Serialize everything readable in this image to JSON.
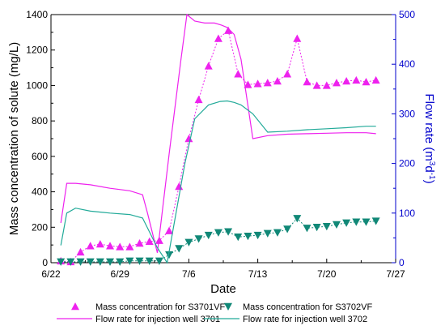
{
  "chart_data": {
    "type": "line",
    "xlabel": "Date",
    "ylabel_left": "Mass concentration of solute (mg/L)",
    "ylabel_right_parts": [
      "Flow rate (m",
      "3",
      "d",
      "-1",
      ")"
    ],
    "x_ticks": [
      "6/22",
      "6/29",
      "7/6",
      "7/13",
      "7/20",
      "7/27"
    ],
    "x_tick_days": [
      0,
      7,
      14,
      21,
      28,
      35
    ],
    "xlim_days": [
      0,
      35
    ],
    "ylim_left": [
      0,
      1400
    ],
    "y_ticks_left": [
      "0",
      "200",
      "400",
      "600",
      "800",
      "1000",
      "1200",
      "1400"
    ],
    "ylim_right": [
      0,
      500
    ],
    "y_ticks_right": [
      "0",
      "100",
      "200",
      "300",
      "400",
      "500"
    ],
    "colors": {
      "s3701": "#ee22ee",
      "s3702": "#118877",
      "flow3701": "#ee22ee",
      "flow3702": "#22aa99",
      "right_axis": "#0000cc"
    },
    "series": [
      {
        "key": "s3701",
        "name": "Mass concentration for S3701VF",
        "axis": "left",
        "marker": "triangle-up",
        "x": [
          1,
          2,
          3,
          4,
          5,
          6,
          7,
          8,
          9,
          10,
          11,
          12,
          13,
          14,
          15,
          16,
          17,
          18,
          19,
          20,
          21,
          22,
          23,
          24,
          25,
          26,
          27,
          28,
          29,
          30,
          31,
          32,
          33
        ],
        "y": [
          10,
          5,
          60,
          95,
          105,
          95,
          90,
          90,
          110,
          120,
          125,
          180,
          430,
          700,
          920,
          1110,
          1265,
          1310,
          1065,
          1005,
          1010,
          1015,
          1025,
          1065,
          1265,
          1020,
          1000,
          1000,
          1015,
          1025,
          1030,
          1020,
          1030
        ]
      },
      {
        "key": "s3702",
        "name": "Mass concentration for S3702VF",
        "axis": "left",
        "marker": "triangle-down",
        "x": [
          1,
          2,
          3,
          4,
          5,
          6,
          7,
          8,
          9,
          10,
          11,
          12,
          13,
          14,
          15,
          16,
          17,
          18,
          19,
          20,
          21,
          22,
          23,
          24,
          25,
          26,
          27,
          28,
          29,
          30,
          31,
          32,
          33
        ],
        "y": [
          5,
          5,
          5,
          5,
          5,
          5,
          5,
          10,
          10,
          10,
          10,
          45,
          80,
          115,
          135,
          155,
          170,
          175,
          145,
          150,
          155,
          165,
          170,
          190,
          250,
          195,
          200,
          205,
          215,
          225,
          230,
          230,
          235
        ]
      },
      {
        "key": "flow3701",
        "name": "Flow rate for injection well 3701",
        "axis": "right",
        "x": [
          1,
          1.6,
          2.5,
          4,
          6,
          8,
          9.3,
          9.8,
          10.8,
          12,
          13.2,
          13.8,
          14.6,
          15.6,
          16.6,
          17.3,
          17.9,
          18.6,
          19.3,
          20.5,
          22,
          24,
          26,
          28,
          30,
          32,
          33
        ],
        "y": [
          80,
          160,
          160,
          157,
          150,
          145,
          137,
          100,
          20,
          220,
          410,
          500,
          487,
          483,
          483,
          479,
          474,
          460,
          410,
          250,
          256,
          259,
          260,
          261,
          262,
          262,
          260
        ]
      },
      {
        "key": "flow3702",
        "name": "Flow rate for injection well 3702",
        "axis": "right",
        "x": [
          1,
          1.6,
          2.5,
          4,
          6,
          8,
          9.3,
          10.8,
          11.8,
          13.6,
          14.6,
          16,
          17.2,
          17.9,
          18.6,
          19.3,
          20.5,
          22,
          24,
          26,
          28,
          30,
          32,
          33
        ],
        "y": [
          35,
          100,
          110,
          104,
          100,
          97,
          90,
          30,
          0,
          200,
          290,
          318,
          325,
          326,
          323,
          318,
          300,
          263,
          265,
          268,
          270,
          272,
          275,
          275
        ]
      }
    ]
  }
}
